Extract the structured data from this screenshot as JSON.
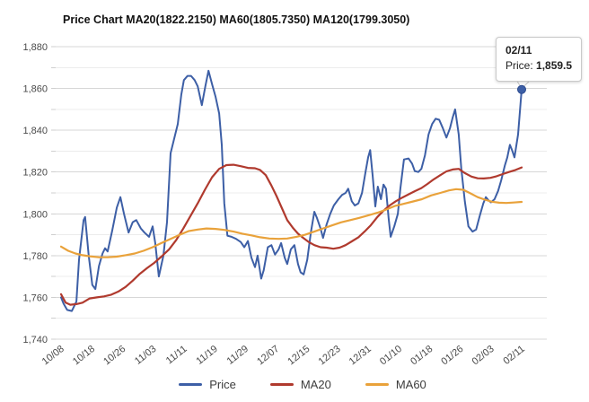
{
  "tooltip": {
    "date": "02/11",
    "label": "Price:",
    "value": "1,859.5"
  },
  "legend": [
    {
      "name": "Price",
      "color": "#3D5FA6"
    },
    {
      "name": "MA20",
      "color": "#B03A2E"
    },
    {
      "name": "MA60",
      "color": "#E9A23B"
    }
  ],
  "chart_data": {
    "type": "line",
    "title": "Price Chart MA20(1822.2150) MA60(1805.7350) MA120(1799.3050)",
    "grid": true,
    "legend_position": "bottom",
    "x_axis": {
      "tick_labels": [
        "10/08",
        "10/18",
        "10/26",
        "11/03",
        "11/11",
        "11/19",
        "11/29",
        "12/07",
        "12/15",
        "12/23",
        "12/31",
        "01/10",
        "01/18",
        "01/26",
        "02/03",
        "02/11"
      ],
      "ticks_every_days": 6,
      "day_index_range": [
        0,
        90
      ]
    },
    "y_axis": {
      "min": 1740,
      "max": 1880,
      "label_step": 20,
      "grid_step": 10,
      "labels": [
        "1,740",
        "1,760",
        "1,780",
        "1,800",
        "1,820",
        "1,840",
        "1,860",
        "1,880"
      ]
    },
    "marker": {
      "series": "Price",
      "day_index": 90,
      "value": 1859.5,
      "color": "#3D5FA6"
    },
    "series": [
      {
        "name": "Price",
        "color": "#3D5FA6",
        "width": 2,
        "points": [
          [
            0,
            1760
          ],
          [
            0.5,
            1757
          ],
          [
            1.2,
            1754
          ],
          [
            2.1,
            1753.5
          ],
          [
            3,
            1758
          ],
          [
            3.5,
            1778
          ],
          [
            4.4,
            1797
          ],
          [
            4.7,
            1798.5
          ],
          [
            5.4,
            1780
          ],
          [
            6.1,
            1766
          ],
          [
            6.7,
            1764
          ],
          [
            7.4,
            1775
          ],
          [
            8.1,
            1781
          ],
          [
            8.6,
            1783.5
          ],
          [
            9.1,
            1782
          ],
          [
            10,
            1792
          ],
          [
            10.9,
            1803
          ],
          [
            11.6,
            1808
          ],
          [
            12.3,
            1800
          ],
          [
            13.2,
            1791
          ],
          [
            14,
            1796
          ],
          [
            14.7,
            1797
          ],
          [
            15.6,
            1793
          ],
          [
            16.3,
            1791
          ],
          [
            17.2,
            1789
          ],
          [
            17.9,
            1794
          ],
          [
            18.4,
            1786
          ],
          [
            19.1,
            1770
          ],
          [
            20,
            1780
          ],
          [
            20.7,
            1796
          ],
          [
            21.4,
            1829
          ],
          [
            22.1,
            1836
          ],
          [
            22.8,
            1843
          ],
          [
            23.5,
            1857
          ],
          [
            24,
            1864
          ],
          [
            24.7,
            1866
          ],
          [
            25.4,
            1866
          ],
          [
            26.1,
            1864
          ],
          [
            26.7,
            1861
          ],
          [
            27.5,
            1852
          ],
          [
            28.2,
            1861
          ],
          [
            28.8,
            1868.5
          ],
          [
            29.5,
            1862
          ],
          [
            30.2,
            1856
          ],
          [
            30.9,
            1848
          ],
          [
            31.4,
            1833
          ],
          [
            31.9,
            1805
          ],
          [
            32.5,
            1789.5
          ],
          [
            33.3,
            1789
          ],
          [
            34.2,
            1788
          ],
          [
            35.1,
            1786.5
          ],
          [
            35.8,
            1784
          ],
          [
            36.5,
            1787
          ],
          [
            37.2,
            1779
          ],
          [
            37.9,
            1774.5
          ],
          [
            38.4,
            1780
          ],
          [
            39.1,
            1769
          ],
          [
            39.6,
            1773
          ],
          [
            40.4,
            1784
          ],
          [
            41.1,
            1785
          ],
          [
            41.8,
            1780.5
          ],
          [
            42.5,
            1783
          ],
          [
            43,
            1786
          ],
          [
            43.7,
            1779
          ],
          [
            44.2,
            1776
          ],
          [
            44.9,
            1783
          ],
          [
            45.6,
            1785
          ],
          [
            46.3,
            1776
          ],
          [
            46.8,
            1772
          ],
          [
            47.4,
            1771
          ],
          [
            48.1,
            1778
          ],
          [
            48.8,
            1791
          ],
          [
            49.5,
            1801
          ],
          [
            50,
            1798
          ],
          [
            50.7,
            1793
          ],
          [
            51.2,
            1788.5
          ],
          [
            51.9,
            1795
          ],
          [
            52.6,
            1800
          ],
          [
            53.3,
            1804
          ],
          [
            54.2,
            1807
          ],
          [
            54.9,
            1809
          ],
          [
            55.6,
            1810
          ],
          [
            56.1,
            1812
          ],
          [
            56.8,
            1806
          ],
          [
            57.4,
            1804
          ],
          [
            58.1,
            1805
          ],
          [
            58.8,
            1810
          ],
          [
            59.5,
            1820
          ],
          [
            60,
            1827
          ],
          [
            60.4,
            1830.5
          ],
          [
            60.9,
            1818
          ],
          [
            61.4,
            1803.5
          ],
          [
            61.9,
            1813
          ],
          [
            62.5,
            1807
          ],
          [
            63,
            1814
          ],
          [
            63.5,
            1812
          ],
          [
            64,
            1798
          ],
          [
            64.4,
            1789
          ],
          [
            65.1,
            1794
          ],
          [
            65.8,
            1800
          ],
          [
            66.3,
            1812
          ],
          [
            67,
            1826
          ],
          [
            67.9,
            1826.5
          ],
          [
            68.6,
            1824
          ],
          [
            69.1,
            1820.5
          ],
          [
            69.8,
            1820
          ],
          [
            70.4,
            1821.5
          ],
          [
            71.1,
            1828
          ],
          [
            71.8,
            1838
          ],
          [
            72.5,
            1843
          ],
          [
            73.2,
            1845.5
          ],
          [
            73.9,
            1845
          ],
          [
            74.6,
            1841
          ],
          [
            75.3,
            1836.5
          ],
          [
            76,
            1841
          ],
          [
            76.5,
            1846
          ],
          [
            77,
            1850
          ],
          [
            77.7,
            1838
          ],
          [
            78.2,
            1822
          ],
          [
            78.9,
            1806
          ],
          [
            79.6,
            1794
          ],
          [
            80.4,
            1791.5
          ],
          [
            81.1,
            1792.5
          ],
          [
            81.8,
            1799
          ],
          [
            82.5,
            1805
          ],
          [
            83,
            1808
          ],
          [
            83.5,
            1806.5
          ],
          [
            84,
            1805.5
          ],
          [
            84.7,
            1807
          ],
          [
            85.4,
            1811
          ],
          [
            86,
            1816
          ],
          [
            86.7,
            1823
          ],
          [
            87.2,
            1827
          ],
          [
            87.7,
            1833
          ],
          [
            88.2,
            1830
          ],
          [
            88.6,
            1827
          ],
          [
            89.3,
            1838
          ],
          [
            90,
            1859.5
          ]
        ]
      },
      {
        "name": "MA20",
        "color": "#B03A2E",
        "width": 2.2,
        "points": [
          [
            0,
            1761.5
          ],
          [
            0.9,
            1757.5
          ],
          [
            1.8,
            1756.5
          ],
          [
            3,
            1756.8
          ],
          [
            4.2,
            1757.5
          ],
          [
            5.6,
            1759.5
          ],
          [
            7,
            1760
          ],
          [
            8.4,
            1760.5
          ],
          [
            9.8,
            1761.3
          ],
          [
            11.2,
            1762.8
          ],
          [
            12.6,
            1765
          ],
          [
            14,
            1768
          ],
          [
            15.4,
            1771.3
          ],
          [
            16.8,
            1774
          ],
          [
            18.2,
            1776.5
          ],
          [
            19.6,
            1779.5
          ],
          [
            21.1,
            1783
          ],
          [
            22.5,
            1787.5
          ],
          [
            23.9,
            1793
          ],
          [
            25.3,
            1799
          ],
          [
            26.7,
            1805
          ],
          [
            28.1,
            1811.5
          ],
          [
            29.5,
            1817.5
          ],
          [
            30.9,
            1821.5
          ],
          [
            32.3,
            1823.3
          ],
          [
            33.7,
            1823.5
          ],
          [
            35.1,
            1822.8
          ],
          [
            36.5,
            1822
          ],
          [
            37.9,
            1821.8
          ],
          [
            38.9,
            1821
          ],
          [
            40,
            1818.5
          ],
          [
            41.1,
            1813.5
          ],
          [
            42.1,
            1808.5
          ],
          [
            43.2,
            1802.5
          ],
          [
            44.2,
            1797
          ],
          [
            45.3,
            1793.3
          ],
          [
            46.3,
            1790.5
          ],
          [
            47.4,
            1788.3
          ],
          [
            48.4,
            1786.5
          ],
          [
            49.5,
            1785
          ],
          [
            50.7,
            1784
          ],
          [
            51.9,
            1783.8
          ],
          [
            53.2,
            1783.3
          ],
          [
            54.4,
            1783.8
          ],
          [
            55.6,
            1785
          ],
          [
            56.8,
            1786.8
          ],
          [
            58.1,
            1788.8
          ],
          [
            59.3,
            1791.5
          ],
          [
            60.5,
            1794.5
          ],
          [
            61.8,
            1798.5
          ],
          [
            63,
            1801.5
          ],
          [
            64.2,
            1804
          ],
          [
            65.4,
            1806
          ],
          [
            66.7,
            1807.8
          ],
          [
            67.9,
            1809.3
          ],
          [
            69.1,
            1810.8
          ],
          [
            70.4,
            1812.3
          ],
          [
            71.6,
            1814.3
          ],
          [
            72.8,
            1816.5
          ],
          [
            74.1,
            1818.5
          ],
          [
            75.3,
            1820.3
          ],
          [
            76.5,
            1821.2
          ],
          [
            77.7,
            1821.5
          ],
          [
            78.9,
            1819.5
          ],
          [
            80.2,
            1817.8
          ],
          [
            81.4,
            1817
          ],
          [
            82.6,
            1816.9
          ],
          [
            83.9,
            1817.2
          ],
          [
            85.1,
            1818
          ],
          [
            86.3,
            1819
          ],
          [
            87.5,
            1820
          ],
          [
            88.8,
            1821
          ],
          [
            90,
            1822.2
          ]
        ]
      },
      {
        "name": "MA60",
        "color": "#E9A23B",
        "width": 2.2,
        "points": [
          [
            0,
            1784.3
          ],
          [
            1.4,
            1782.3
          ],
          [
            2.8,
            1781
          ],
          [
            4.2,
            1780.2
          ],
          [
            5.6,
            1779.7
          ],
          [
            7.4,
            1779.2
          ],
          [
            9.1,
            1779.2
          ],
          [
            10.9,
            1779.5
          ],
          [
            12.6,
            1780.2
          ],
          [
            14.4,
            1781
          ],
          [
            16.1,
            1782.3
          ],
          [
            17.9,
            1784
          ],
          [
            19.6,
            1786
          ],
          [
            21.4,
            1788
          ],
          [
            23.2,
            1790
          ],
          [
            24.9,
            1791.7
          ],
          [
            26.7,
            1792.5
          ],
          [
            28.4,
            1793
          ],
          [
            30.2,
            1792.8
          ],
          [
            31.9,
            1792.3
          ],
          [
            33.7,
            1791.5
          ],
          [
            35.4,
            1790.5
          ],
          [
            37.2,
            1789.7
          ],
          [
            38.9,
            1788.8
          ],
          [
            40.7,
            1788.2
          ],
          [
            42.5,
            1788
          ],
          [
            44.2,
            1788.2
          ],
          [
            46,
            1789
          ],
          [
            47.7,
            1790
          ],
          [
            49.5,
            1791.5
          ],
          [
            51.2,
            1793
          ],
          [
            53,
            1794.5
          ],
          [
            54.7,
            1795.9
          ],
          [
            56.5,
            1797
          ],
          [
            58.2,
            1798
          ],
          [
            60,
            1799.2
          ],
          [
            61.8,
            1800.5
          ],
          [
            63.5,
            1802
          ],
          [
            65.3,
            1803.8
          ],
          [
            67,
            1804.8
          ],
          [
            68.8,
            1805.9
          ],
          [
            70.5,
            1807
          ],
          [
            72.3,
            1808.8
          ],
          [
            74.1,
            1810
          ],
          [
            75.8,
            1811.2
          ],
          [
            77.2,
            1811.8
          ],
          [
            78.6,
            1811.5
          ],
          [
            80,
            1809.8
          ],
          [
            81.4,
            1808
          ],
          [
            82.8,
            1806.8
          ],
          [
            84.2,
            1805.8
          ],
          [
            85.6,
            1805.3
          ],
          [
            87,
            1805.2
          ],
          [
            88.4,
            1805.4
          ],
          [
            90,
            1805.7
          ]
        ]
      }
    ]
  }
}
